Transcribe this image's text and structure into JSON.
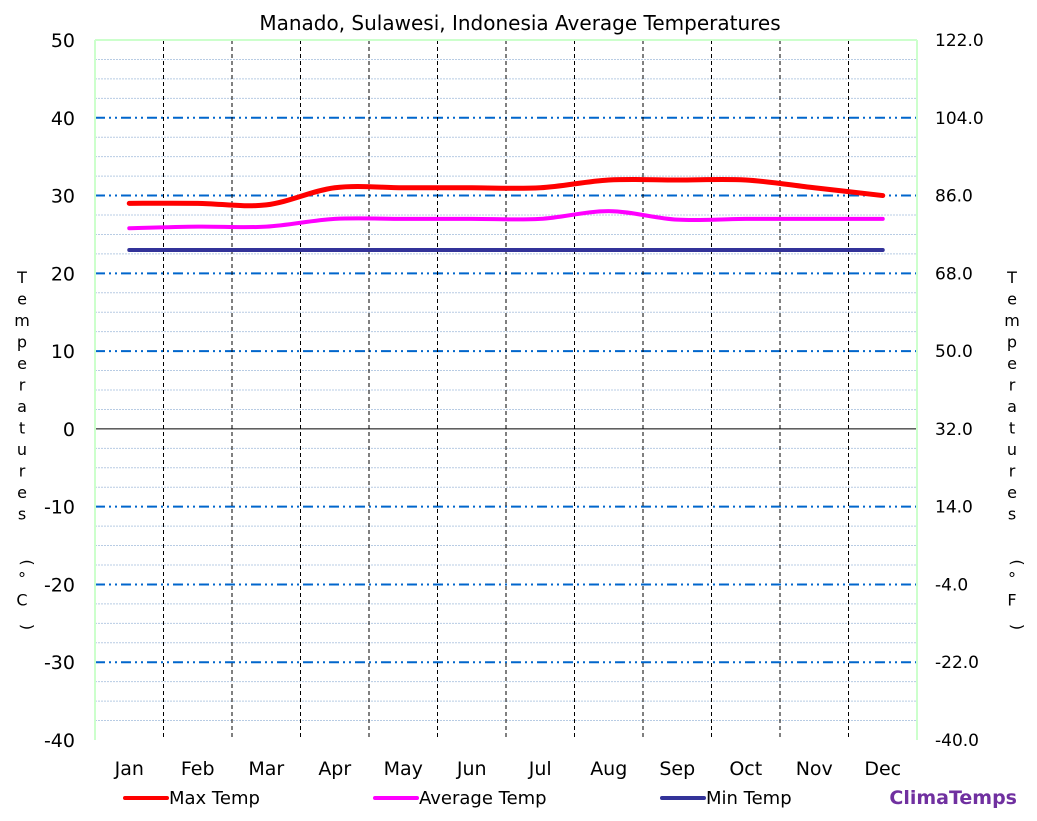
{
  "chart_data": {
    "type": "line",
    "title": "Manado, Sulawesi, Indonesia Average Temperatures",
    "categories": [
      "Jan",
      "Feb",
      "Mar",
      "Apr",
      "May",
      "Jun",
      "Jul",
      "Aug",
      "Sep",
      "Oct",
      "Nov",
      "Dec"
    ],
    "ylabel": "Temperatures (°C)",
    "y2label": "Temperatures (°F)",
    "ylim": [
      -40,
      50
    ],
    "y2lim": [
      -40,
      122
    ],
    "yticks": [
      "50",
      "40",
      "30",
      "20",
      "10",
      "0",
      "-10",
      "-20",
      "-30",
      "-40"
    ],
    "y2ticks": [
      "122.0",
      "104.0",
      "86.0",
      "68.0",
      "50.0",
      "32.0",
      "14.0",
      "-4.0",
      "-22.0",
      "-40.0"
    ],
    "grid": true,
    "legend_placement": "bottom",
    "series": [
      {
        "name": "Max Temp",
        "color": "#ff0000",
        "values": [
          29,
          29,
          28.8,
          31,
          31,
          31,
          31,
          32,
          32,
          32,
          31,
          30
        ]
      },
      {
        "name": "Average Temp",
        "color": "#ff00ff",
        "values": [
          25.8,
          26,
          26,
          27,
          27,
          27,
          27,
          28,
          26.9,
          27,
          27,
          27
        ]
      },
      {
        "name": "Min Temp",
        "color": "#333399",
        "values": [
          23,
          23,
          23,
          23,
          23,
          23,
          23,
          23,
          23,
          23,
          23,
          23
        ]
      }
    ]
  },
  "brand": {
    "text": "ClimaTemps",
    "color": "#7030a0"
  }
}
